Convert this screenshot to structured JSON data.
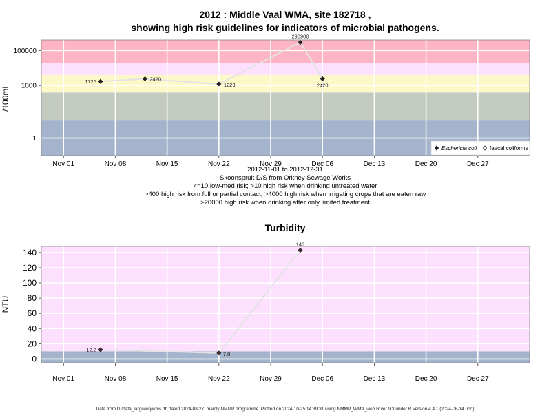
{
  "chart_data": [
    {
      "type": "scatter",
      "title_line1": "2012 : Middle Vaal WMA, site 182718 ,",
      "title_line2": "showing high risk guidelines for indicators of microbial pathogens.",
      "ylabel": "/100mL",
      "y_scale": "log",
      "y_ticks": [
        "1",
        "1000",
        "100000"
      ],
      "x_ticks": [
        "Nov 01",
        "Nov 08",
        "Nov 15",
        "Nov 22",
        "Nov 29",
        "Dec 06",
        "Dec 13",
        "Dec 20",
        "Dec 27"
      ],
      "x_range": [
        "2012-10-29",
        "2013-01-03"
      ],
      "grid": true,
      "risk_bands": [
        {
          "from": 0.1,
          "to": 10,
          "color": "#a3b4cc"
        },
        {
          "from": 10,
          "to": 400,
          "color": "#c3cbc1"
        },
        {
          "from": 400,
          "to": 4000,
          "color": "#fdf8c8"
        },
        {
          "from": 4000,
          "to": 20000,
          "color": "#fde0fd"
        },
        {
          "from": 20000,
          "to": 400000,
          "color": "#fdb4c4"
        }
      ],
      "series": [
        {
          "name": "Eschericia coli",
          "marker": "filled-diamond",
          "points": [
            {
              "x": "2012-11-06",
              "y": 1725,
              "label": "1725"
            },
            {
              "x": "2012-11-12",
              "y": 2420,
              "label": "2420"
            },
            {
              "x": "2012-11-22",
              "y": 1223,
              "label": "1223"
            },
            {
              "x": "2012-12-03",
              "y": 290900,
              "label": "290900"
            },
            {
              "x": "2012-12-06",
              "y": 2420,
              "label": "2420"
            }
          ]
        },
        {
          "name": "faecal coliforms",
          "marker": "open-diamond",
          "points": []
        }
      ],
      "legend_position": "bottom-right",
      "caption": [
        "2012-11-01 to 2012-12-31",
        "Skoonspruit D/S from Orkney Sewage Works",
        "<=10 low-med risk; >10 high risk when drinking untreated water",
        ">400 high risk from full or partial contact; >4000 high risk when irrigating crops that are eaten raw",
        ">20000 high risk when drinking after only limited treatment"
      ]
    },
    {
      "type": "scatter",
      "title": "Turbidity",
      "ylabel": "NTU",
      "y_ticks": [
        "0",
        "20",
        "40",
        "60",
        "80",
        "100",
        "120",
        "140"
      ],
      "ylim": [
        -5,
        148
      ],
      "x_ticks": [
        "Nov 01",
        "Nov 08",
        "Nov 15",
        "Nov 22",
        "Nov 29",
        "Dec 06",
        "Dec 13",
        "Dec 20",
        "Dec 27"
      ],
      "x_range": [
        "2012-10-29",
        "2013-01-03"
      ],
      "grid": true,
      "background_color": "#fde0fd",
      "lower_band": {
        "from": -5,
        "to": 10,
        "color": "#a3b4cc"
      },
      "series": [
        {
          "name": "Turbidity",
          "marker": "filled-diamond",
          "points": [
            {
              "x": "2012-11-06",
              "y": 12.2,
              "label": "12.2"
            },
            {
              "x": "2012-11-22",
              "y": 7.8,
              "label": "7.8"
            },
            {
              "x": "2012-12-03",
              "y": 143,
              "label": "143"
            }
          ]
        }
      ]
    }
  ],
  "footer": "Data from D:/data_large/wq/wms.db dated 2024-08-27, mainly NMMP programme. Plotted on 2024-10-25 14:39:31 using NMMP_WMA_web.R ver 9.3 under R version 4.4.1 (2024-06-14 ucrt)"
}
